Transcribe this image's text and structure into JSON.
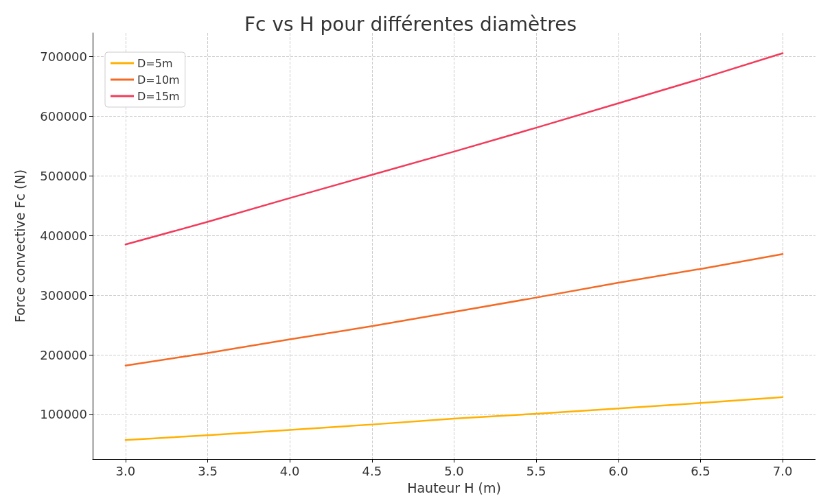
{
  "chart_data": {
    "type": "line",
    "title": "Fc vs H pour différentes diamètres",
    "xlabel": "Hauteur H (m)",
    "ylabel": "Force convective Fc (N)",
    "x": [
      3.0,
      3.5,
      4.0,
      4.5,
      5.0,
      5.5,
      6.0,
      6.5,
      7.0
    ],
    "series": [
      {
        "name": "D=5m",
        "color": "#ffb000",
        "values": [
          57000,
          65000,
          74000,
          83000,
          93000,
          101000,
          110000,
          119000,
          129000
        ]
      },
      {
        "name": "D=10m",
        "color": "#f46a25",
        "values": [
          182000,
          203000,
          226000,
          248000,
          272000,
          296000,
          321000,
          344000,
          369000
        ]
      },
      {
        "name": "D=15m",
        "color": "#f23b5a",
        "values": [
          385000,
          423000,
          463000,
          502000,
          541000,
          581000,
          622000,
          663000,
          706000
        ]
      }
    ],
    "xlim": [
      2.8,
      7.2
    ],
    "xticks": [
      {
        "value": 3,
        "label": "3.0"
      },
      3.5,
      {
        "value": 4,
        "label": "4.0"
      },
      4.5,
      {
        "value": 5,
        "label": "5.0"
      },
      5.5,
      {
        "value": 6,
        "label": "6.0"
      },
      6.5,
      {
        "value": 7,
        "label": "7.0"
      }
    ],
    "ylim": [
      25000,
      740000
    ],
    "yticks": [
      100000,
      200000,
      300000,
      400000,
      500000,
      600000,
      700000
    ],
    "grid": true,
    "legend": "top left",
    "marker": "none",
    "line_style": "solid"
  }
}
